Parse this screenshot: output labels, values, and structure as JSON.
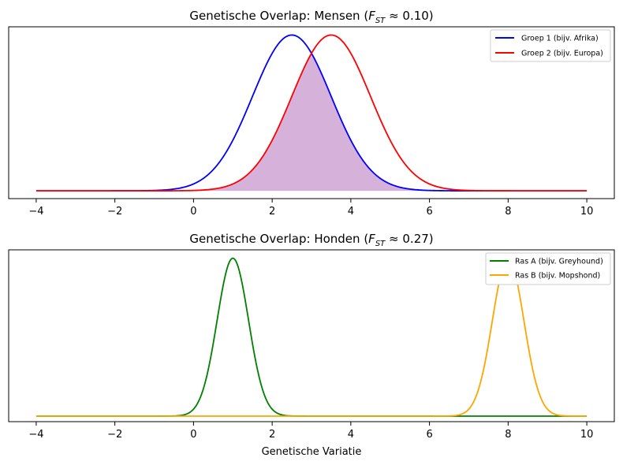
{
  "chart_data": [
    {
      "type": "line",
      "title": "Genetische Overlap: Mensen (F_ST ≈ 0.10)",
      "title_main": "Genetische Overlap: Mensen (",
      "title_sym": "F",
      "title_sub": "ST",
      "title_end": " ≈ 0.10)",
      "xlabel": "",
      "ylabel": "",
      "xlim": [
        -4.7,
        10.7
      ],
      "ylim": [
        -0.02,
        0.42
      ],
      "x_ticks": [
        -4,
        -2,
        0,
        2,
        4,
        6,
        8,
        10
      ],
      "x_tick_labels": [
        "−4",
        "−2",
        "0",
        "2",
        "4",
        "6",
        "8",
        "10"
      ],
      "x_range": [
        -4,
        10
      ],
      "legend_position": "top-right",
      "fill_overlap": {
        "color": "#d6b1d9",
        "between": "min"
      },
      "series": [
        {
          "name": "Groep 1 (bijv. Afrika)",
          "color": "#0000ff",
          "distribution": "normal",
          "mean": 2.5,
          "std": 1.0
        },
        {
          "name": "Groep 2 (bijv. Europa)",
          "color": "#ff0000",
          "distribution": "normal",
          "mean": 3.5,
          "std": 1.0
        }
      ]
    },
    {
      "type": "line",
      "title": "Genetische Overlap: Honden (F_ST ≈ 0.27)",
      "title_main": "Genetische Overlap: Honden (",
      "title_sym": "F",
      "title_sub": "ST",
      "title_end": " ≈ 0.27)",
      "xlabel": "Genetische Variatie",
      "ylabel": "",
      "xlim": [
        -4.7,
        10.7
      ],
      "ylim": [
        -0.035,
        1.05
      ],
      "x_ticks": [
        -4,
        -2,
        0,
        2,
        4,
        6,
        8,
        10
      ],
      "x_tick_labels": [
        "−4",
        "−2",
        "0",
        "2",
        "4",
        "6",
        "8",
        "10"
      ],
      "x_range": [
        -4,
        10
      ],
      "legend_position": "top-right",
      "series": [
        {
          "name": "Ras A (bijv. Greyhound)",
          "color": "#008000",
          "distribution": "normal",
          "mean": 1.0,
          "std": 0.4
        },
        {
          "name": "Ras B (bijv. Mopshond)",
          "color": "#ffa500",
          "distribution": "normal",
          "mean": 8.0,
          "std": 0.4
        }
      ]
    }
  ]
}
